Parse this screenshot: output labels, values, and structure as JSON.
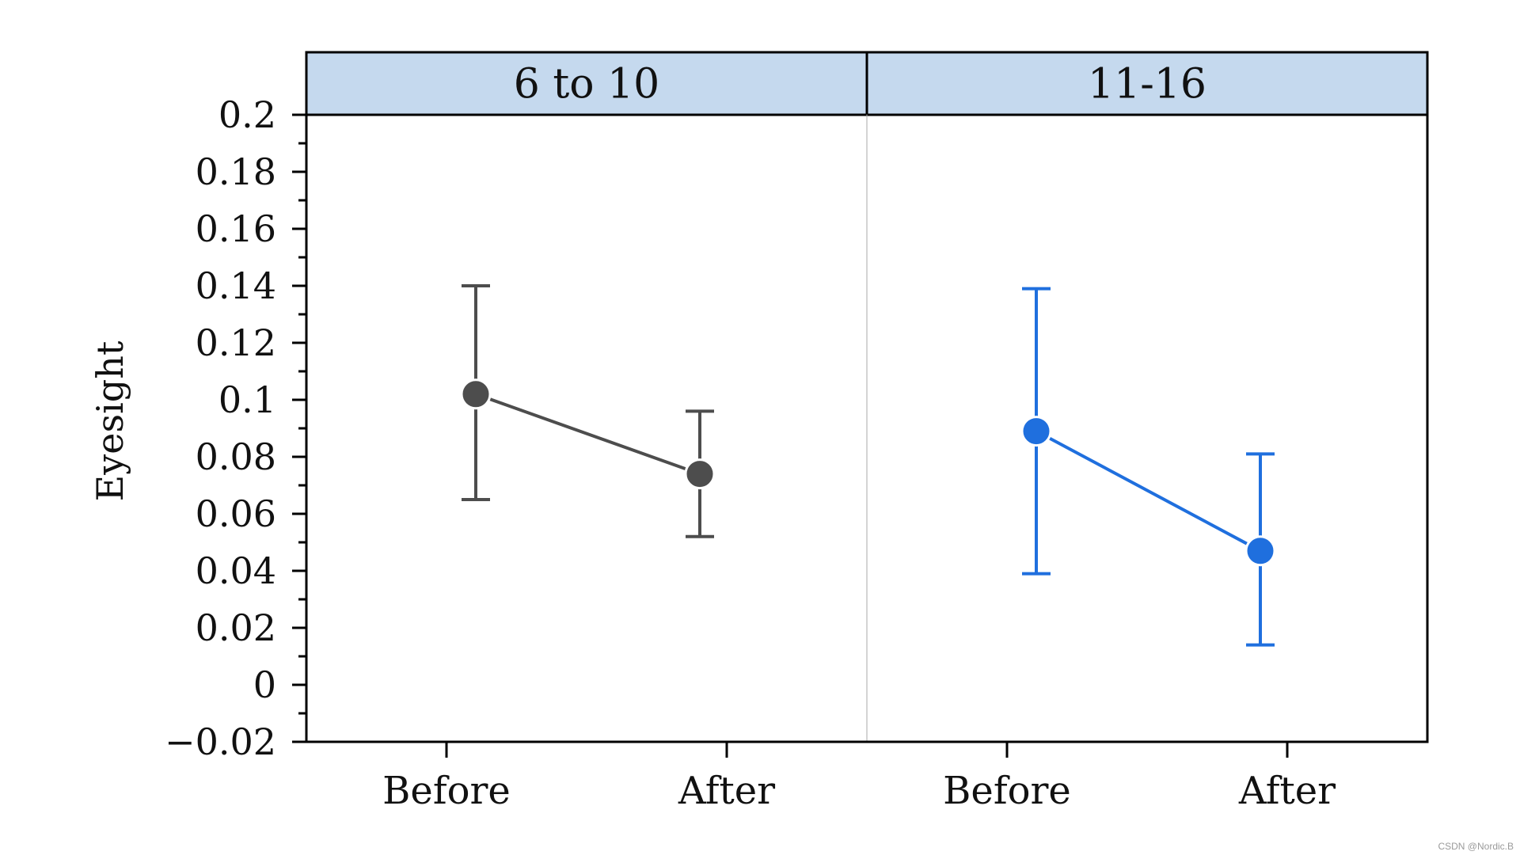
{
  "chart_data": {
    "type": "line",
    "subtype": "point-range with error bars, faceted",
    "ylabel": "Eyesight",
    "ylim": [
      -0.02,
      0.2
    ],
    "y_ticks": [
      -0.02,
      0,
      0.02,
      0.04,
      0.06,
      0.08,
      0.1,
      0.12,
      0.14,
      0.16,
      0.18,
      0.2
    ],
    "y_tick_labels": [
      "−0.02",
      "0",
      "0.02",
      "0.04",
      "0.06",
      "0.08",
      "0.1",
      "0.12",
      "0.14",
      "0.16",
      "0.18",
      "0.2"
    ],
    "y_minor_step": 0.01,
    "grid": false,
    "strip_color": "#c5d9ee",
    "panels": [
      {
        "title": "6 to 10",
        "categories": [
          "Before",
          "After"
        ],
        "color": "#4d4d4d",
        "values": [
          0.102,
          0.074
        ],
        "lower": [
          0.065,
          0.052
        ],
        "upper": [
          0.14,
          0.096
        ]
      },
      {
        "title": "11-16",
        "categories": [
          "Before",
          "After"
        ],
        "color": "#1f6fde",
        "values": [
          0.089,
          0.047
        ],
        "lower": [
          0.039,
          0.014
        ],
        "upper": [
          0.139,
          0.081
        ]
      }
    ]
  },
  "watermark": "CSDN @Nordic.B"
}
